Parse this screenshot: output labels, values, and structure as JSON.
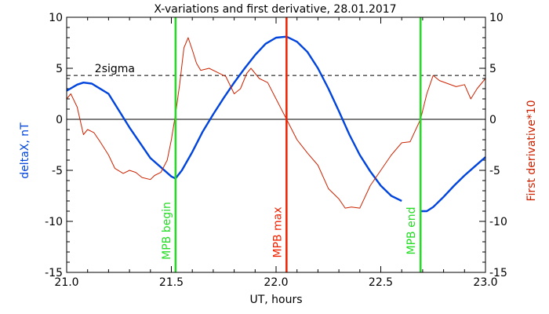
{
  "chart_data": {
    "type": "line",
    "title": "X-variations and first derivative, 28.01.2017",
    "xlabel": "UT, hours",
    "ylabel_left": "deltaX, nT",
    "ylabel_right": "First derivative*10",
    "xlim": [
      21.0,
      23.0
    ],
    "ylim": [
      -15,
      10
    ],
    "x_ticks": [
      "21.0",
      "21.5",
      "22.0",
      "22.5",
      "23.0"
    ],
    "y_ticks": [
      "10",
      "5",
      "0",
      "-5",
      "-10",
      "-15"
    ],
    "threshold": {
      "label": "2sigma",
      "value": 4.3
    },
    "markers": [
      {
        "label": "MPB begin",
        "x": 21.52,
        "color": "#22dd22"
      },
      {
        "label": "MPB max",
        "x": 22.05,
        "color": "#ee2200"
      },
      {
        "label": "MPB end",
        "x": 22.69,
        "color": "#22dd22"
      }
    ],
    "colors": {
      "deltaX": "#0044dd",
      "derivative": "#cc2200"
    },
    "series": [
      {
        "key": "deltaX",
        "x": [
          21.0,
          21.05,
          21.08,
          21.12,
          21.2,
          21.3,
          21.4,
          21.5,
          21.52,
          21.55,
          21.6,
          21.65,
          21.7,
          21.75,
          21.8,
          21.85,
          21.9,
          21.95,
          22.0,
          22.05,
          22.1,
          22.15,
          22.2,
          22.25,
          22.3,
          22.35,
          22.4,
          22.45,
          22.5,
          22.55,
          22.6
        ],
        "values": [
          2.8,
          3.4,
          3.6,
          3.5,
          2.5,
          -0.8,
          -3.8,
          -5.6,
          -5.8,
          -5.0,
          -3.2,
          -1.2,
          0.5,
          2.1,
          3.6,
          5.0,
          6.3,
          7.4,
          8.0,
          8.1,
          7.6,
          6.6,
          5.0,
          3.0,
          0.8,
          -1.5,
          -3.5,
          -5.1,
          -6.5,
          -7.5,
          -8.0
        ]
      },
      {
        "key": "deltaX_after",
        "x": [
          22.69,
          22.72,
          22.75,
          22.8,
          22.85,
          22.9,
          22.95,
          23.0
        ],
        "values": [
          -9.0,
          -9.0,
          -8.6,
          -7.6,
          -6.5,
          -5.5,
          -4.6,
          -3.7
        ]
      },
      {
        "key": "derivative",
        "x": [
          21.0,
          21.02,
          21.05,
          21.08,
          21.1,
          21.13,
          21.16,
          21.2,
          21.23,
          21.27,
          21.3,
          21.33,
          21.36,
          21.4,
          21.42,
          21.45,
          21.48,
          21.5,
          21.52,
          21.54,
          21.56,
          21.58,
          21.6,
          21.62,
          21.64,
          21.68,
          21.72,
          21.76,
          21.8,
          21.83,
          21.86,
          21.88,
          21.92,
          21.96,
          22.0,
          22.05,
          22.1,
          22.15,
          22.2,
          22.25,
          22.3,
          22.33,
          22.36,
          22.4,
          22.45,
          22.5,
          22.55,
          22.6,
          22.64,
          22.69,
          22.72,
          22.75,
          22.78,
          22.82,
          22.86,
          22.9,
          22.93,
          22.96,
          23.0
        ],
        "values": [
          2.0,
          2.5,
          1.2,
          -1.5,
          -1.0,
          -1.3,
          -2.2,
          -3.5,
          -4.8,
          -5.3,
          -5.0,
          -5.2,
          -5.7,
          -5.9,
          -5.5,
          -5.2,
          -4.0,
          -2.0,
          0.5,
          3.5,
          7.0,
          8.0,
          6.8,
          5.5,
          4.8,
          5.0,
          4.6,
          4.2,
          2.5,
          3.0,
          4.5,
          5.0,
          4.0,
          3.6,
          2.0,
          0.0,
          -2.0,
          -3.3,
          -4.5,
          -6.8,
          -7.8,
          -8.7,
          -8.6,
          -8.7,
          -6.5,
          -5.0,
          -3.5,
          -2.3,
          -2.2,
          0.0,
          2.5,
          4.3,
          3.8,
          3.5,
          3.2,
          3.4,
          2.0,
          3.0,
          4.0
        ]
      }
    ]
  }
}
